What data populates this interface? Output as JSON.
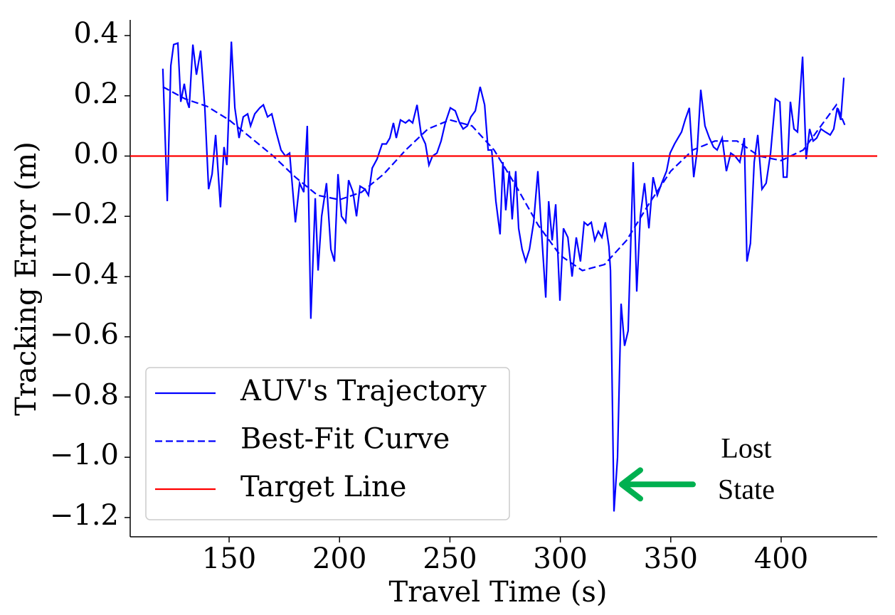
{
  "chart_data": {
    "type": "line",
    "x_label": "Travel Time (s)",
    "y_label": "Tracking Error (m)",
    "xlim": [
      105.2,
      443.5
    ],
    "ylim": [
      -1.264,
      0.452
    ],
    "xticks": [
      150,
      200,
      250,
      300,
      350,
      400
    ],
    "yticks": [
      0.4,
      0.2,
      {
        "value": 0,
        "label": "0.0"
      },
      {
        "value": -0.2,
        "label": "−0.2"
      },
      {
        "value": -0.4,
        "label": "−0.4"
      },
      {
        "value": -0.6,
        "label": "−0.6"
      },
      {
        "value": -0.8,
        "label": "−0.8"
      },
      {
        "value": -1.0,
        "label": "−1.0"
      },
      {
        "value": -1.2,
        "label": "−1.2"
      }
    ],
    "legend_position": "lower left",
    "series": [
      {
        "name": "AUV's Trajectory",
        "color": "#0000ff",
        "style": "solid",
        "x": [
          120,
          122,
          123.6,
          124.9,
          126.8,
          128.1,
          129.7,
          131,
          131.9,
          133.6,
          135.2,
          137.1,
          139,
          140.7,
          142.3,
          143.9,
          146.1,
          147.7,
          149,
          151,
          152.6,
          154.5,
          156.4,
          158.4,
          159.7,
          161.6,
          163.9,
          165.5,
          167.4,
          169.3,
          171.3,
          173.5,
          175.5,
          177.4,
          180,
          181.9,
          183.8,
          185.4,
          187,
          189,
          190.3,
          191.9,
          194.1,
          196.1,
          197.7,
          199.3,
          200.9,
          202.8,
          204.1,
          206.1,
          207.7,
          209.3,
          211.5,
          213.1,
          214.8,
          217,
          219.3,
          221.2,
          222.8,
          224.4,
          225.7,
          227.6,
          229.9,
          231.5,
          233.1,
          235.1,
          237,
          238.9,
          240.5,
          242.1,
          244.1,
          246,
          247.9,
          250.2,
          252.4,
          254.4,
          256,
          257.9,
          259.5,
          261.5,
          263.7,
          265.7,
          267.3,
          268.9,
          270.8,
          272.7,
          274,
          275.3,
          276.9,
          278.2,
          279.8,
          281.1,
          282.7,
          284.3,
          286,
          287.9,
          289.8,
          291.8,
          293.4,
          294.7,
          296.3,
          297.9,
          299.8,
          301.4,
          303.4,
          305.3,
          307.2,
          309.1,
          310.8,
          312.4,
          314,
          315.6,
          317.2,
          318.8,
          320.4,
          322,
          322.7,
          324.3,
          325.9,
          327.5,
          329.1,
          330.7,
          333,
          334.6,
          336.2,
          338.1,
          340.1,
          342,
          343.9,
          345.9,
          348.1,
          349.7,
          351.7,
          353.3,
          354.9,
          356.5,
          358.4,
          360.4,
          362,
          363.6,
          365.5,
          367.5,
          369.4,
          371,
          373.3,
          375.2,
          377.2,
          379.1,
          381.3,
          383.3,
          384.5,
          386.1,
          387.8,
          389.4,
          391.3,
          393.2,
          395.2,
          397.4,
          399.4,
          401,
          402.6,
          404.2,
          405.8,
          407.4,
          409.7,
          411.3,
          412.9,
          414.5,
          416.1,
          418,
          420,
          422.2,
          423.8,
          425.4,
          427,
          428.4
        ],
        "values": [
          0.29,
          -0.15,
          0.3,
          0.37,
          0.375,
          0.18,
          0.24,
          0.18,
          0.16,
          0.37,
          0.27,
          0.35,
          0.16,
          -0.11,
          -0.06,
          0.07,
          -0.17,
          0.03,
          -0.03,
          0.38,
          0.16,
          0.06,
          0.13,
          0.14,
          0.1,
          0.14,
          0.16,
          0.17,
          0.13,
          0.14,
          0.08,
          0.02,
          0,
          0.01,
          -0.22,
          -0.09,
          -0.12,
          0.1,
          -0.54,
          -0.14,
          -0.38,
          -0.2,
          -0.09,
          -0.31,
          -0.35,
          -0.06,
          -0.2,
          -0.22,
          -0.08,
          -0.12,
          -0.2,
          -0.1,
          -0.11,
          -0.13,
          -0.04,
          -0.01,
          0.04,
          0.04,
          0.06,
          0.11,
          0.06,
          0.12,
          0.11,
          0.12,
          0.11,
          0.17,
          0.07,
          0.04,
          -0.03,
          0,
          0.01,
          0.05,
          0.11,
          0.16,
          0.15,
          0.11,
          0.09,
          0.1,
          0.13,
          0.15,
          0.23,
          0.17,
          0.02,
          0.02,
          -0.15,
          -0.26,
          -0.02,
          -0.18,
          -0.05,
          -0.21,
          -0.05,
          -0.24,
          -0.31,
          -0.35,
          -0.31,
          -0.22,
          -0.05,
          -0.29,
          -0.47,
          -0.15,
          -0.28,
          -0.16,
          -0.48,
          -0.24,
          -0.27,
          -0.4,
          -0.27,
          -0.35,
          -0.22,
          -0.23,
          -0.22,
          -0.28,
          -0.25,
          -0.27,
          -0.22,
          -0.3,
          -0.38,
          -1.18,
          -1.0,
          -0.49,
          -0.63,
          -0.58,
          -0.02,
          -0.45,
          -0.2,
          -0.09,
          -0.24,
          -0.07,
          -0.13,
          -0.09,
          -0.05,
          0.01,
          0.04,
          0.06,
          0.08,
          0.12,
          0.16,
          -0.07,
          0.02,
          0.22,
          0.1,
          0.06,
          0.03,
          0.02,
          0.06,
          -0.05,
          0.01,
          0,
          -0.02,
          0.06,
          -0.35,
          -0.29,
          -0.02,
          0.07,
          -0.11,
          -0.09,
          0.01,
          0.19,
          0.18,
          -0.07,
          -0.07,
          0.18,
          0.09,
          0.08,
          0.33,
          -0.01,
          0.09,
          0.05,
          0.06,
          0.09,
          0.08,
          0.07,
          0.09,
          0.16,
          0.12,
          0.26
        ]
      },
      {
        "name": "Best-Fit Curve",
        "color": "#0000ff",
        "style": "dashed",
        "x": [
          120,
          130,
          140,
          150,
          160,
          170,
          180,
          190,
          200,
          210,
          220,
          230,
          240,
          250,
          260,
          270,
          280,
          290,
          300,
          310,
          320,
          330,
          340,
          350,
          360,
          370,
          380,
          390,
          400,
          410,
          420,
          425,
          429
        ],
        "values": [
          0.23,
          0.19,
          0.165,
          0.12,
          0.06,
          0,
          -0.07,
          -0.13,
          -0.145,
          -0.12,
          -0.06,
          0.02,
          0.09,
          0.12,
          0.1,
          0.02,
          -0.1,
          -0.23,
          -0.33,
          -0.38,
          -0.36,
          -0.28,
          -0.16,
          -0.05,
          0.02,
          0.05,
          0.05,
          0,
          -0.015,
          0.02,
          0.12,
          0.17,
          0.1
        ]
      },
      {
        "name": "Target Line",
        "color": "#ff0000",
        "style": "solid",
        "y": 0
      }
    ],
    "annotation": {
      "lines": [
        "Lost",
        "State"
      ],
      "color": "#00b050",
      "x": 325.9,
      "y": -1.09
    }
  }
}
